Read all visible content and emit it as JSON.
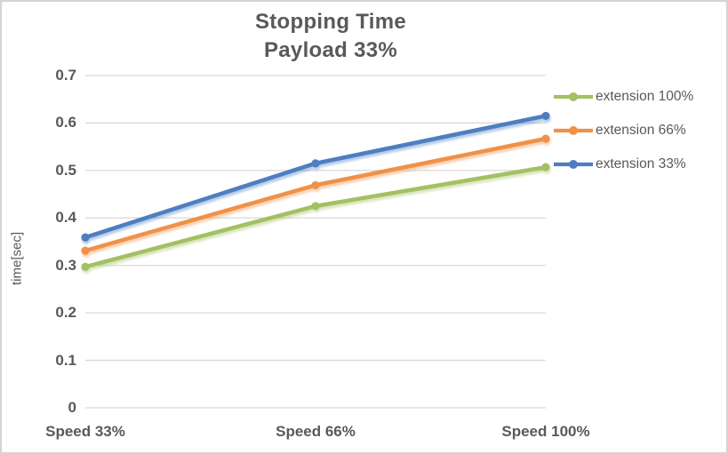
{
  "chart": {
    "title_line1": "Stopping Time",
    "title_line2": "Payload 33%",
    "ylabel": "time[sec]"
  },
  "chart_data": {
    "type": "line",
    "title": "Stopping Time",
    "subtitle": "Payload 33%",
    "categories": [
      "Speed 33%",
      "Speed 66%",
      "Speed 100%"
    ],
    "series": [
      {
        "name": "extension 100%",
        "color": "#A2C162",
        "values": [
          0.297,
          0.425,
          0.507
        ]
      },
      {
        "name": "extension 66%",
        "color": "#F0914A",
        "values": [
          0.331,
          0.469,
          0.567
        ]
      },
      {
        "name": "extension 33%",
        "color": "#4E7EC0",
        "values": [
          0.359,
          0.515,
          0.615
        ]
      }
    ],
    "xlabel": "",
    "ylabel": "time[sec]",
    "ylim": [
      0,
      0.7
    ],
    "yticks": [
      "0.7",
      "0.6",
      "0.5",
      "0.4",
      "0.3",
      "0.2",
      "0.1",
      "0"
    ],
    "ytick_values": [
      0.7,
      0.6,
      0.5,
      0.4,
      0.3,
      0.2,
      0.1,
      0
    ],
    "grid": true,
    "legend_position": "right",
    "marker": "circle",
    "text_color": "#595959",
    "grid_color": "#D9D9D9"
  }
}
